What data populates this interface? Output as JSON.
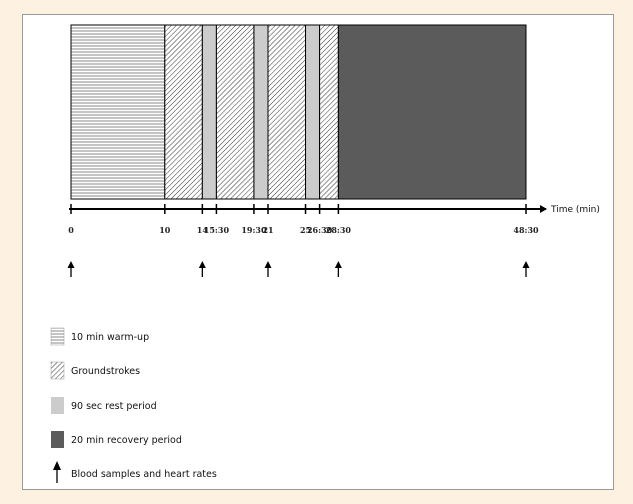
{
  "timeline": {
    "axis_label": "Time (min)",
    "segments": [
      {
        "start": 0,
        "end": 10,
        "type": "warmup"
      },
      {
        "start": 10,
        "end": 14,
        "type": "groundstrokes"
      },
      {
        "start": 14,
        "end": 15.5,
        "type": "rest"
      },
      {
        "start": 15.5,
        "end": 19.5,
        "type": "groundstrokes"
      },
      {
        "start": 19.5,
        "end": 21,
        "type": "rest"
      },
      {
        "start": 21,
        "end": 25,
        "type": "groundstrokes"
      },
      {
        "start": 25,
        "end": 26.5,
        "type": "rest"
      },
      {
        "start": 26.5,
        "end": 28.5,
        "type": "groundstrokes"
      },
      {
        "start": 28.5,
        "end": 48.5,
        "type": "recovery"
      }
    ],
    "ticks": [
      {
        "value": 0,
        "label": "0"
      },
      {
        "value": 10,
        "label": "10"
      },
      {
        "value": 14,
        "label": "14"
      },
      {
        "value": 15.5,
        "label": "15:30"
      },
      {
        "value": 19.5,
        "label": "19:30"
      },
      {
        "value": 21,
        "label": "21"
      },
      {
        "value": 25,
        "label": "25"
      },
      {
        "value": 26.5,
        "label": "26:30"
      },
      {
        "value": 28.5,
        "label": "28:30"
      },
      {
        "value": 48.5,
        "label": "48:30"
      }
    ],
    "sample_times": [
      0,
      14,
      21,
      28.5,
      48.5
    ],
    "axis_max": 48.5
  },
  "legend": {
    "warmup_label": "10 min warm-up",
    "groundstrokes_label": "Groundstrokes",
    "rest_label": "90 sec rest period",
    "recovery_label": "20 min recovery period",
    "arrow_label": "Blood samples and heart rates"
  },
  "colors": {
    "rest": "#cccccc",
    "recovery": "#5b5b5b",
    "outline": "#000000",
    "page_background": "#fdf1e2"
  }
}
